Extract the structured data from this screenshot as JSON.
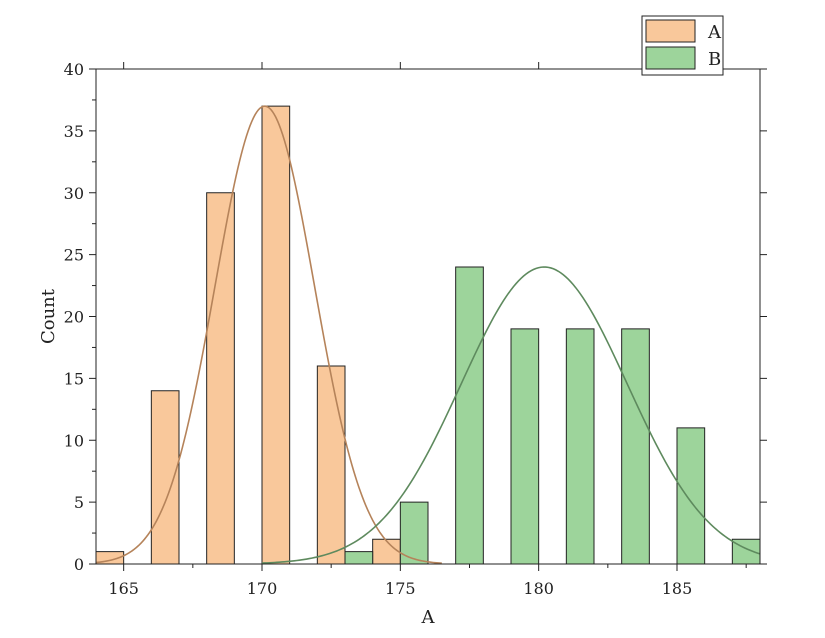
{
  "chart_data": {
    "type": "bar",
    "title": "",
    "xlabel": "A",
    "ylabel": "Count",
    "xlim": [
      164,
      188
    ],
    "ylim": [
      0,
      40
    ],
    "x_ticks": [
      165,
      170,
      175,
      180,
      185
    ],
    "y_ticks": [
      0,
      5,
      10,
      15,
      20,
      25,
      30,
      35,
      40
    ],
    "bin_width": 1,
    "grid": false,
    "legend_position": "top-right",
    "series": [
      {
        "name": "A",
        "color": "#f9c89b",
        "curve_color": "#b5835a",
        "bins": [
          {
            "x": 164.5,
            "count": 1
          },
          {
            "x": 166.5,
            "count": 14
          },
          {
            "x": 168.5,
            "count": 30
          },
          {
            "x": 170.5,
            "count": 37
          },
          {
            "x": 172.5,
            "count": 16
          },
          {
            "x": 174.5,
            "count": 2
          }
        ],
        "fit": {
          "mean": 170.1,
          "sd": 1.8,
          "peak": 37,
          "from": 164,
          "to": 176.5
        }
      },
      {
        "name": "B",
        "color": "#9dd49b",
        "curve_color": "#5e8a5e",
        "bins": [
          {
            "x": 173.5,
            "count": 1
          },
          {
            "x": 175.5,
            "count": 5
          },
          {
            "x": 177.5,
            "count": 24
          },
          {
            "x": 179.5,
            "count": 19
          },
          {
            "x": 181.5,
            "count": 19
          },
          {
            "x": 183.5,
            "count": 19
          },
          {
            "x": 185.5,
            "count": 11
          },
          {
            "x": 187.5,
            "count": 2
          }
        ],
        "fit": {
          "mean": 180.2,
          "sd": 3.0,
          "peak": 24,
          "from": 170,
          "to": 188
        }
      }
    ]
  }
}
